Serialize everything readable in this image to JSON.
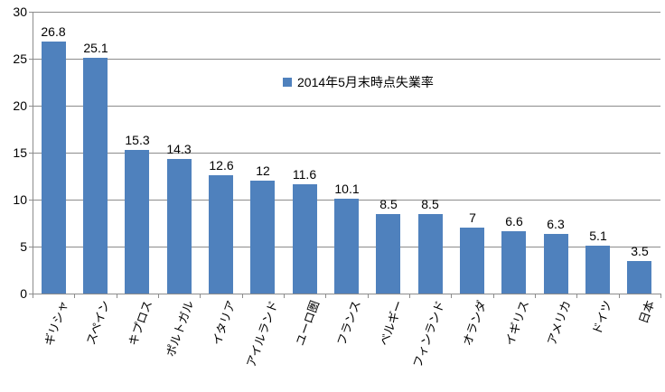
{
  "chart_data": {
    "type": "bar",
    "title": "",
    "xlabel": "",
    "ylabel": "",
    "legend": {
      "label": "2014年5月末時点失業率",
      "position": "inside-top-center"
    },
    "categories": [
      "ギリシャ",
      "スペイン",
      "キプロス",
      "ポルトガル",
      "イタリア",
      "アイルランド",
      "ユーロ圏",
      "フランス",
      "ベルギー",
      "フィンランド",
      "オランダ",
      "イギリス",
      "アメリカ",
      "ドイツ",
      "日本"
    ],
    "values": [
      26.8,
      25.1,
      15.3,
      14.3,
      12.6,
      12,
      11.6,
      10.1,
      8.5,
      8.5,
      7,
      6.6,
      6.3,
      5.1,
      3.5
    ],
    "data_labels": [
      "26.8",
      "25.1",
      "15.3",
      "14.3",
      "12.6",
      "12",
      "11.6",
      "10.1",
      "8.5",
      "8.5",
      "7",
      "6.6",
      "6.3",
      "5.1",
      "3.5"
    ],
    "ylim": [
      0,
      30
    ],
    "yticks": [
      0,
      5,
      10,
      15,
      20,
      25,
      30
    ],
    "grid": true,
    "bar_gap_ratio": 0.42,
    "label_rotation_deg": -70,
    "colors": {
      "bar": "#4F81BD",
      "gridline": "#8C8C8C",
      "axis": "#8C8C8C",
      "text": "#000000",
      "background": "#FFFFFF"
    }
  }
}
